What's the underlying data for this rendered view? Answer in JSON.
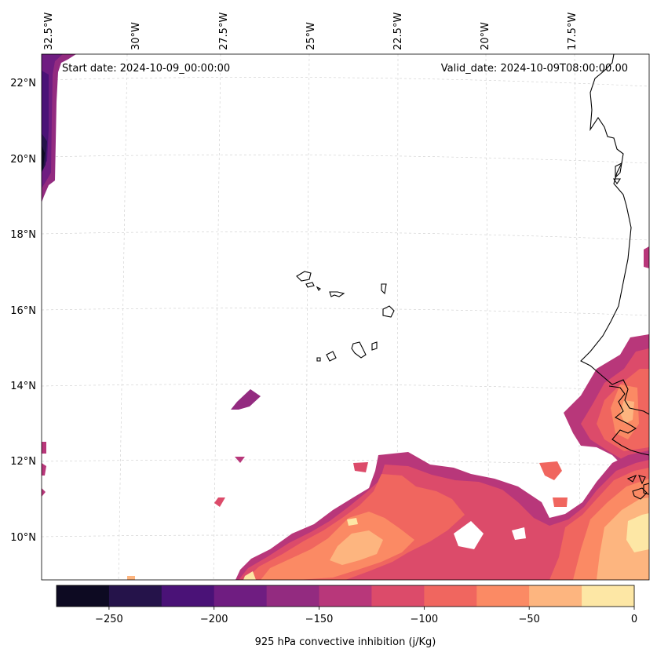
{
  "annotations": {
    "start": "Start date: 2024-10-09_00:00:00",
    "valid": "Valid_date: 2024-10-09T08:00:00.00"
  },
  "longitude_labels": [
    "32.5°W",
    "30°W",
    "27.5°W",
    "25°W",
    "22.5°W",
    "20°W",
    "17.5°W"
  ],
  "latitude_labels": [
    "22°N",
    "20°N",
    "18°N",
    "16°N",
    "14°N",
    "12°N",
    "10°N"
  ],
  "colorbar": {
    "label": "925 hPa convective inhibition (j/Kg)",
    "min": -275,
    "max": 0,
    "ticks": [
      -250,
      -200,
      -150,
      -100,
      -50,
      0
    ],
    "tick_labels": [
      "−250",
      "−200",
      "−150",
      "−100",
      "−50",
      "0"
    ],
    "colors": [
      "#0d0a22",
      "#25134a",
      "#4a1277",
      "#6f1d81",
      "#932b80",
      "#b8377a",
      "#dc4b6a",
      "#f0665f",
      "#fb8a64",
      "#fdb57f",
      "#fde7a5"
    ]
  },
  "chart_data": {
    "type": "heatmap",
    "title": "",
    "variable": "925 hPa convective inhibition",
    "units": "j/Kg",
    "lon_range": [
      -33,
      -15.5
    ],
    "lat_range": [
      8.8,
      22.8
    ],
    "levels": [
      -275,
      -250,
      -225,
      -200,
      -175,
      -150,
      -125,
      -100,
      -75,
      -50,
      -25,
      0
    ],
    "regions": [
      {
        "name": "northwest edge strip",
        "approx_value": -200
      },
      {
        "name": "south convective band",
        "approx_value": -75
      },
      {
        "name": "west african coast patch",
        "approx_value": -100
      },
      {
        "name": "small isolated cells",
        "approx_value": -140
      }
    ]
  },
  "islands": {
    "name": "Cape Verde"
  }
}
